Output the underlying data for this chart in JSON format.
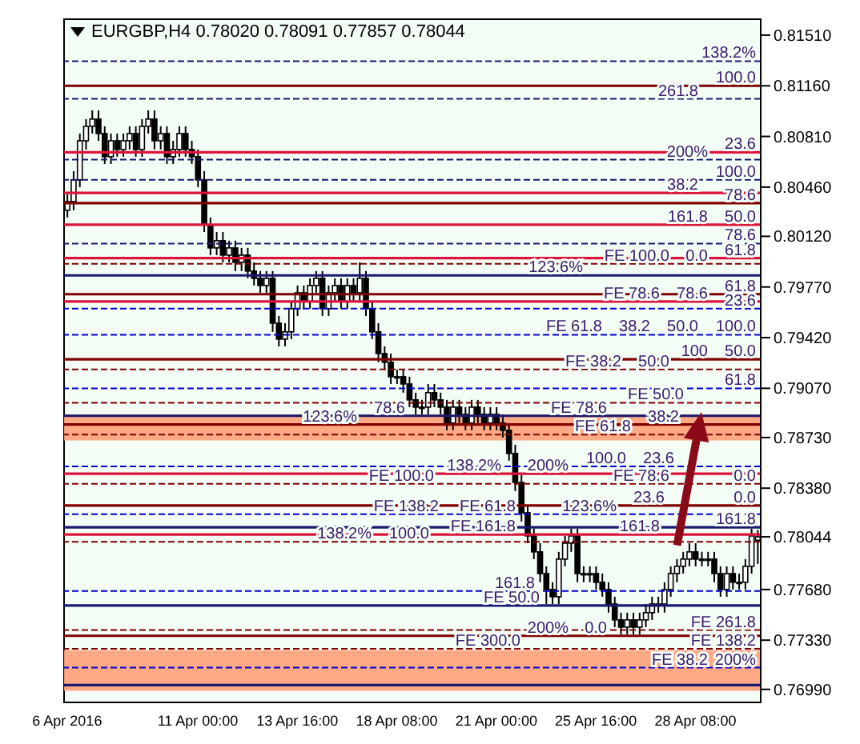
{
  "chart_data": {
    "type": "candlestick",
    "title": "EURGBP,H4  0.78020 0.78091 0.77857 0.78044",
    "categories": [
      "6 Apr 2016",
      null,
      null,
      null,
      null,
      null,
      null,
      null,
      null,
      null,
      null,
      null,
      null,
      null,
      null,
      null,
      null,
      null,
      null,
      null,
      null,
      "11 Apr 00:00",
      null,
      null,
      null,
      null,
      null,
      null,
      null,
      null,
      null,
      null,
      null,
      null,
      null,
      null,
      null,
      "13 Apr 16:00",
      null,
      null,
      null,
      null,
      null,
      null,
      null,
      null,
      null,
      null,
      null,
      null,
      null,
      null,
      null,
      "18 Apr 08:00",
      null,
      null,
      null,
      null,
      null,
      null,
      null,
      null,
      null,
      null,
      null,
      null,
      null,
      null,
      null,
      "21 Apr 00:00",
      null,
      null,
      null,
      null,
      null,
      null,
      null,
      null,
      null,
      null,
      null,
      null,
      null,
      null,
      null,
      "25 Apr 16:00",
      null,
      null,
      null,
      null,
      null,
      null,
      null,
      null,
      null,
      null,
      null,
      null,
      null,
      null,
      null,
      "28 Apr 08:00",
      null,
      null,
      null,
      null,
      null,
      null,
      null,
      null,
      null,
      null
    ],
    "ohlc": [
      [
        0.803,
        0.8041,
        0.8025,
        0.8036
      ],
      [
        0.8036,
        0.8057,
        0.803,
        0.8051
      ],
      [
        0.8051,
        0.8083,
        0.8046,
        0.8078
      ],
      [
        0.8078,
        0.8093,
        0.8072,
        0.8088
      ],
      [
        0.8088,
        0.8099,
        0.8083,
        0.8093
      ],
      [
        0.8093,
        0.8099,
        0.8078,
        0.8083
      ],
      [
        0.8083,
        0.8088,
        0.8062,
        0.8067
      ],
      [
        0.8067,
        0.8083,
        0.8062,
        0.8078
      ],
      [
        0.8078,
        0.8083,
        0.8067,
        0.8072
      ],
      [
        0.8072,
        0.8083,
        0.8067,
        0.8078
      ],
      [
        0.8078,
        0.8088,
        0.8072,
        0.8083
      ],
      [
        0.8083,
        0.8088,
        0.8067,
        0.8072
      ],
      [
        0.8072,
        0.8093,
        0.8067,
        0.8088
      ],
      [
        0.8088,
        0.8099,
        0.8083,
        0.8093
      ],
      [
        0.8093,
        0.8099,
        0.8072,
        0.8078
      ],
      [
        0.8078,
        0.8088,
        0.8072,
        0.8083
      ],
      [
        0.8083,
        0.8088,
        0.8062,
        0.8067
      ],
      [
        0.8067,
        0.8078,
        0.8062,
        0.8072
      ],
      [
        0.8072,
        0.8088,
        0.8067,
        0.8083
      ],
      [
        0.8083,
        0.8088,
        0.8067,
        0.8072
      ],
      [
        0.8072,
        0.8078,
        0.8062,
        0.8067
      ],
      [
        0.8067,
        0.8072,
        0.8046,
        0.8051
      ],
      [
        0.8051,
        0.8057,
        0.8015,
        0.802
      ],
      [
        0.802,
        0.8025,
        0.7999,
        0.8004
      ],
      [
        0.8004,
        0.8015,
        0.7999,
        0.8009
      ],
      [
        0.8009,
        0.8015,
        0.7994,
        0.7999
      ],
      [
        0.7999,
        0.8009,
        0.7994,
        0.8004
      ],
      [
        0.8004,
        0.8009,
        0.7988,
        0.7994
      ],
      [
        0.7994,
        0.8004,
        0.7988,
        0.7999
      ],
      [
        0.7999,
        0.8004,
        0.7983,
        0.7988
      ],
      [
        0.7988,
        0.7994,
        0.7978,
        0.7983
      ],
      [
        0.7983,
        0.7988,
        0.7973,
        0.7978
      ],
      [
        0.7978,
        0.7988,
        0.7973,
        0.7983
      ],
      [
        0.7983,
        0.7988,
        0.7946,
        0.7952
      ],
      [
        0.7952,
        0.7957,
        0.7936,
        0.7941
      ],
      [
        0.7941,
        0.7952,
        0.7936,
        0.7946
      ],
      [
        0.7946,
        0.7967,
        0.7941,
        0.7962
      ],
      [
        0.7962,
        0.7978,
        0.7957,
        0.7973
      ],
      [
        0.7973,
        0.7978,
        0.7962,
        0.7967
      ],
      [
        0.7967,
        0.7983,
        0.7962,
        0.7978
      ],
      [
        0.7978,
        0.7988,
        0.7973,
        0.7983
      ],
      [
        0.7983,
        0.7988,
        0.7957,
        0.7962
      ],
      [
        0.7962,
        0.7978,
        0.7957,
        0.7973
      ],
      [
        0.7973,
        0.7983,
        0.7967,
        0.7978
      ],
      [
        0.7978,
        0.7983,
        0.7962,
        0.7967
      ],
      [
        0.7967,
        0.7983,
        0.7962,
        0.7978
      ],
      [
        0.7978,
        0.7983,
        0.7967,
        0.7973
      ],
      [
        0.7973,
        0.7994,
        0.7967,
        0.7983
      ],
      [
        0.7983,
        0.7988,
        0.7957,
        0.7962
      ],
      [
        0.7962,
        0.7967,
        0.7941,
        0.7946
      ],
      [
        0.7946,
        0.7952,
        0.7925,
        0.7931
      ],
      [
        0.7931,
        0.7936,
        0.792,
        0.7925
      ],
      [
        0.7925,
        0.7931,
        0.791,
        0.7915
      ],
      [
        0.7915,
        0.792,
        0.791,
        0.7915
      ],
      [
        0.7915,
        0.792,
        0.7904,
        0.791
      ],
      [
        0.791,
        0.7915,
        0.7894,
        0.7899
      ],
      [
        0.7899,
        0.7904,
        0.7889,
        0.7894
      ],
      [
        0.7894,
        0.7899,
        0.7889,
        0.7894
      ],
      [
        0.7894,
        0.791,
        0.7889,
        0.7904
      ],
      [
        0.7904,
        0.791,
        0.7894,
        0.7899
      ],
      [
        0.7899,
        0.7904,
        0.7889,
        0.7894
      ],
      [
        0.7894,
        0.7899,
        0.7878,
        0.7883
      ],
      [
        0.7883,
        0.7899,
        0.7878,
        0.7894
      ],
      [
        0.7894,
        0.7899,
        0.7883,
        0.7889
      ],
      [
        0.7889,
        0.7894,
        0.7878,
        0.7883
      ],
      [
        0.7883,
        0.7899,
        0.7878,
        0.7894
      ],
      [
        0.7894,
        0.7899,
        0.7883,
        0.7889
      ],
      [
        0.7889,
        0.7894,
        0.7878,
        0.7883
      ],
      [
        0.7883,
        0.7894,
        0.7878,
        0.7889
      ],
      [
        0.7889,
        0.7894,
        0.7878,
        0.7883
      ],
      [
        0.7883,
        0.7889,
        0.7873,
        0.7878
      ],
      [
        0.7878,
        0.7883,
        0.7857,
        0.7862
      ],
      [
        0.7862,
        0.7868,
        0.7836,
        0.7842
      ],
      [
        0.7842,
        0.7847,
        0.7815,
        0.7821
      ],
      [
        0.7821,
        0.7826,
        0.78,
        0.7805
      ],
      [
        0.7805,
        0.781,
        0.7789,
        0.7794
      ],
      [
        0.7794,
        0.78,
        0.7773,
        0.7779
      ],
      [
        0.7779,
        0.7784,
        0.7758,
        0.7768
      ],
      [
        0.7768,
        0.7773,
        0.7758,
        0.7763
      ],
      [
        0.7763,
        0.7794,
        0.7758,
        0.7789
      ],
      [
        0.7789,
        0.7805,
        0.7784,
        0.78
      ],
      [
        0.78,
        0.781,
        0.7794,
        0.7805
      ],
      [
        0.7805,
        0.781,
        0.7773,
        0.7779
      ],
      [
        0.7779,
        0.7784,
        0.7773,
        0.7779
      ],
      [
        0.7779,
        0.7784,
        0.7773,
        0.7779
      ],
      [
        0.7779,
        0.7784,
        0.7768,
        0.7773
      ],
      [
        0.7773,
        0.7779,
        0.7763,
        0.7768
      ],
      [
        0.7768,
        0.7773,
        0.7752,
        0.7758
      ],
      [
        0.7758,
        0.7763,
        0.7742,
        0.7747
      ],
      [
        0.7747,
        0.7752,
        0.7737,
        0.7742
      ],
      [
        0.7742,
        0.7752,
        0.7737,
        0.7747
      ],
      [
        0.7747,
        0.7752,
        0.7737,
        0.7742
      ],
      [
        0.7742,
        0.7752,
        0.7737,
        0.7747
      ],
      [
        0.7747,
        0.7758,
        0.7742,
        0.7752
      ],
      [
        0.7752,
        0.7763,
        0.7747,
        0.7758
      ],
      [
        0.7758,
        0.7763,
        0.7752,
        0.7758
      ],
      [
        0.7758,
        0.7773,
        0.7752,
        0.7768
      ],
      [
        0.7768,
        0.7784,
        0.7763,
        0.7779
      ],
      [
        0.7779,
        0.7789,
        0.7773,
        0.7784
      ],
      [
        0.7784,
        0.7794,
        0.7779,
        0.7789
      ],
      [
        0.7789,
        0.78,
        0.7784,
        0.7794
      ],
      [
        0.7794,
        0.78,
        0.7784,
        0.7789
      ],
      [
        0.7789,
        0.7794,
        0.7784,
        0.7789
      ],
      [
        0.7789,
        0.7794,
        0.7784,
        0.7789
      ],
      [
        0.7789,
        0.7794,
        0.7773,
        0.7779
      ],
      [
        0.7779,
        0.7784,
        0.7763,
        0.7768
      ],
      [
        0.7768,
        0.7784,
        0.7763,
        0.7779
      ],
      [
        0.7779,
        0.7784,
        0.7768,
        0.7773
      ],
      [
        0.7773,
        0.7779,
        0.7768,
        0.7773
      ],
      [
        0.7773,
        0.7789,
        0.7768,
        0.7784
      ],
      [
        0.7784,
        0.781,
        0.7779,
        0.7805
      ],
      [
        0.7802,
        0.78091,
        0.77857,
        0.78044
      ]
    ],
    "ylim": [
      0.769,
      0.8162
    ],
    "yticks": [
      {
        "value": 0.8151,
        "label": "0.81510"
      },
      {
        "value": 0.8116,
        "label": "0.81160"
      },
      {
        "value": 0.8081,
        "label": "0.80810"
      },
      {
        "value": 0.8046,
        "label": "0.80460"
      },
      {
        "value": 0.8012,
        "label": "0.80120"
      },
      {
        "value": 0.7977,
        "label": "0.79770"
      },
      {
        "value": 0.7942,
        "label": "0.79420"
      },
      {
        "value": 0.7907,
        "label": "0.79070"
      },
      {
        "value": 0.7873,
        "label": "0.78730"
      },
      {
        "value": 0.7838,
        "label": "0.78380"
      },
      {
        "value": 0.78044,
        "label": "0.78044"
      },
      {
        "value": 0.7768,
        "label": "0.77680"
      },
      {
        "value": 0.7733,
        "label": "0.77330"
      },
      {
        "value": 0.7699,
        "label": "0.76990"
      }
    ],
    "bands": [
      {
        "axis": "y",
        "from": 0.7698,
        "to": 0.7726,
        "color": "#ffa07a"
      },
      {
        "axis": "y",
        "from": 0.7871,
        "to": 0.7882,
        "color": "#ffa07a"
      },
      {
        "axis": "y",
        "from": 0.7882,
        "to": 0.7889,
        "color": "#ffa07a"
      }
    ],
    "ref_lines": [
      {
        "axis": "y",
        "value": 0.8133,
        "color": "#191970",
        "line_style": "dashed"
      },
      {
        "axis": "y",
        "value": 0.8116,
        "color": "#800000",
        "line_style": "solid"
      },
      {
        "axis": "y",
        "value": 0.8107,
        "color": "#191970",
        "line_style": "dashed"
      },
      {
        "axis": "y",
        "value": 0.807,
        "color": "#dc143c",
        "line_style": "solid"
      },
      {
        "axis": "y",
        "value": 0.8065,
        "color": "#191970",
        "line_style": "dashed"
      },
      {
        "axis": "y",
        "value": 0.8051,
        "color": "#191970",
        "line_style": "dashed"
      },
      {
        "axis": "y",
        "value": 0.8042,
        "color": "#dc143c",
        "line_style": "solid"
      },
      {
        "axis": "y",
        "value": 0.8035,
        "color": "#800000",
        "line_style": "solid"
      },
      {
        "axis": "y",
        "value": 0.802,
        "color": "#dc143c",
        "line_style": "solid"
      },
      {
        "axis": "y",
        "value": 0.8007,
        "color": "#191970",
        "line_style": "dashed"
      },
      {
        "axis": "y",
        "value": 0.7997,
        "color": "#dc143c",
        "line_style": "solid"
      },
      {
        "axis": "y",
        "value": 0.7993,
        "color": "#800000",
        "line_style": "dashed"
      },
      {
        "axis": "y",
        "value": 0.7985,
        "color": "#191970",
        "line_style": "solid"
      },
      {
        "axis": "y",
        "value": 0.7972,
        "color": "#800000",
        "line_style": "solid"
      },
      {
        "axis": "y",
        "value": 0.7967,
        "color": "#dc143c",
        "line_style": "solid"
      },
      {
        "axis": "y",
        "value": 0.7962,
        "color": "#0000cd",
        "line_style": "dashed"
      },
      {
        "axis": "y",
        "value": 0.7944,
        "color": "#0000cd",
        "line_style": "dashed"
      },
      {
        "axis": "y",
        "value": 0.7927,
        "color": "#800000",
        "line_style": "solid"
      },
      {
        "axis": "y",
        "value": 0.792,
        "color": "#800000",
        "line_style": "dashed"
      },
      {
        "axis": "y",
        "value": 0.7907,
        "color": "#0000cd",
        "line_style": "dashed"
      },
      {
        "axis": "y",
        "value": 0.7897,
        "color": "#800000",
        "line_style": "dashed"
      },
      {
        "axis": "y",
        "value": 0.7888,
        "color": "#191970",
        "line_style": "solid"
      },
      {
        "axis": "y",
        "value": 0.7882,
        "color": "#800000",
        "line_style": "solid"
      },
      {
        "axis": "y",
        "value": 0.7875,
        "color": "#800000",
        "line_style": "dashed"
      },
      {
        "axis": "y",
        "value": 0.7853,
        "color": "#0000cd",
        "line_style": "dashed"
      },
      {
        "axis": "y",
        "value": 0.7848,
        "color": "#dc143c",
        "line_style": "solid"
      },
      {
        "axis": "y",
        "value": 0.7841,
        "color": "#800000",
        "line_style": "dashed"
      },
      {
        "axis": "y",
        "value": 0.7826,
        "color": "#800000",
        "line_style": "solid"
      },
      {
        "axis": "y",
        "value": 0.782,
        "color": "#0000cd",
        "line_style": "dashed"
      },
      {
        "axis": "y",
        "value": 0.7811,
        "color": "#191970",
        "line_style": "solid"
      },
      {
        "axis": "y",
        "value": 0.7806,
        "color": "#dc143c",
        "line_style": "solid"
      },
      {
        "axis": "y",
        "value": 0.7801,
        "color": "#800000",
        "line_style": "dashed"
      },
      {
        "axis": "y",
        "value": 0.7767,
        "color": "#0000cd",
        "line_style": "dashed"
      },
      {
        "axis": "y",
        "value": 0.7757,
        "color": "#191970",
        "line_style": "solid"
      },
      {
        "axis": "y",
        "value": 0.774,
        "color": "#800000",
        "line_style": "dashed"
      },
      {
        "axis": "y",
        "value": 0.7736,
        "color": "#800000",
        "line_style": "solid"
      },
      {
        "axis": "y",
        "value": 0.7727,
        "color": "#800000",
        "line_style": "dashed"
      },
      {
        "axis": "y",
        "value": 0.7714,
        "color": "#0000cd",
        "line_style": "dashed"
      },
      {
        "axis": "y",
        "value": 0.7702,
        "color": "#191970",
        "line_style": "solid"
      }
    ],
    "annotations": [
      {
        "text": "138.2%",
        "y": 0.8133
      },
      {
        "text": "100.0",
        "y": 0.8116
      },
      {
        "text": "261.8",
        "y": 0.8107
      },
      {
        "text": "23.6",
        "y": 0.807
      },
      {
        "text": "200%",
        "y": 0.8065
      },
      {
        "text": "100.0",
        "y": 0.8051
      },
      {
        "text": "38.2",
        "y": 0.8042
      },
      {
        "text": "78.6",
        "y": 0.8035
      },
      {
        "text": "50.0",
        "y": 0.802
      },
      {
        "text": "161.8",
        "y": 0.802
      },
      {
        "text": "78.6",
        "y": 0.8007
      },
      {
        "text": "61.8",
        "y": 0.7997
      },
      {
        "text": "0.0",
        "y": 0.7993
      },
      {
        "text": "FE 100.0",
        "y": 0.7993
      },
      {
        "text": "123.6%",
        "y": 0.7985
      },
      {
        "text": "61.8",
        "y": 0.7972
      },
      {
        "text": "78.6",
        "y": 0.7967
      },
      {
        "text": "FE 78.6",
        "y": 0.7967
      },
      {
        "text": "23.6",
        "y": 0.7962
      },
      {
        "text": "100.0",
        "y": 0.7944
      },
      {
        "text": "50.0",
        "y": 0.7944
      },
      {
        "text": "38.2",
        "y": 0.7944
      },
      {
        "text": "FE 61.8",
        "y": 0.7944
      },
      {
        "text": "50.0",
        "y": 0.7927
      },
      {
        "text": "100",
        "y": 0.7927
      },
      {
        "text": "50.0",
        "y": 0.792
      },
      {
        "text": "FE 38.2",
        "y": 0.792
      },
      {
        "text": "61.8",
        "y": 0.7907
      },
      {
        "text": "FE 50.0",
        "y": 0.7897
      },
      {
        "text": "FE 78.6",
        "y": 0.7888
      },
      {
        "text": "78.6",
        "y": 0.7888
      },
      {
        "text": "38.2",
        "y": 0.7882
      },
      {
        "text": "123.6%",
        "y": 0.7882
      },
      {
        "text": "FE 61.8",
        "y": 0.7875
      },
      {
        "text": "23.6",
        "y": 0.7853
      },
      {
        "text": "100.0",
        "y": 0.7853
      },
      {
        "text": "200%",
        "y": 0.7848
      },
      {
        "text": "138.2%",
        "y": 0.7848
      },
      {
        "text": "FE 78.6",
        "y": 0.7841
      },
      {
        "text": "0.0",
        "y": 0.7841
      },
      {
        "text": "FE 100.0",
        "y": 0.7841
      },
      {
        "text": "0.0",
        "y": 0.7826
      },
      {
        "text": "23.6",
        "y": 0.7826
      },
      {
        "text": "123.6%",
        "y": 0.782
      },
      {
        "text": "FE 61.8",
        "y": 0.782
      },
      {
        "text": "FE 138.2",
        "y": 0.782
      },
      {
        "text": "161.8",
        "y": 0.7811
      },
      {
        "text": "161.8",
        "y": 0.7806
      },
      {
        "text": "FE 161.8",
        "y": 0.7806
      },
      {
        "text": "100.0",
        "y": 0.7801
      },
      {
        "text": "138.2%",
        "y": 0.7801
      },
      {
        "text": "161.8",
        "y": 0.7767
      },
      {
        "text": "FE 50.0",
        "y": 0.7757
      },
      {
        "text": "FE 261.8",
        "y": 0.774
      },
      {
        "text": "0.0",
        "y": 0.7736
      },
      {
        "text": "200%",
        "y": 0.7736
      },
      {
        "text": "FE 138.2",
        "y": 0.7727
      },
      {
        "text": "FE 300.0",
        "y": 0.7727
      },
      {
        "text": "200%",
        "y": 0.7714
      },
      {
        "text": "FE 38.2",
        "y": 0.7714
      }
    ]
  }
}
